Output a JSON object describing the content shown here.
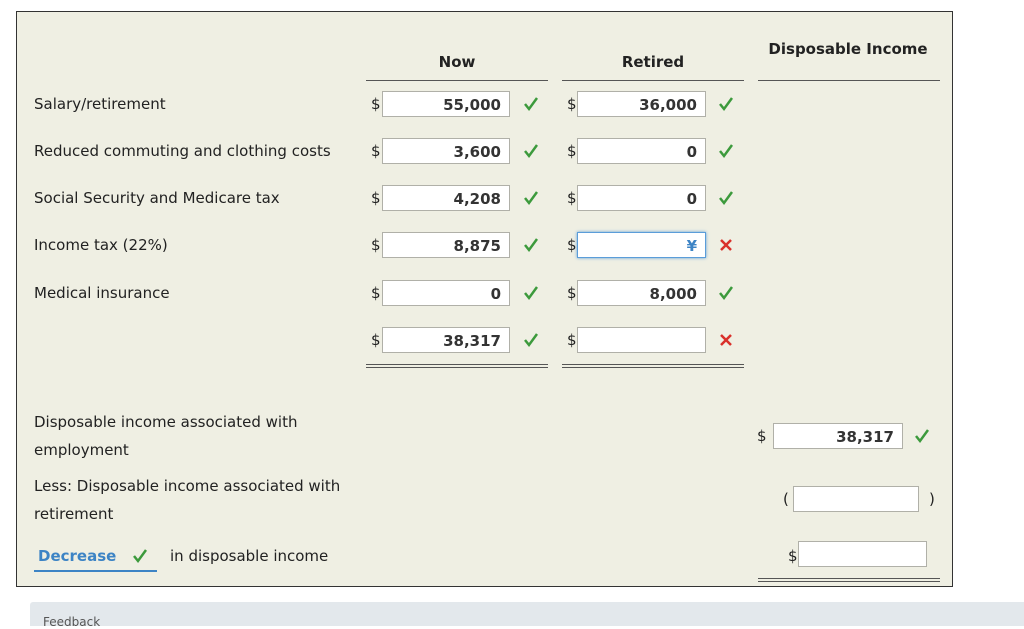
{
  "header": {
    "now": "Now",
    "retired": "Retired",
    "disposable_income": "Disposable Income"
  },
  "currency": "$",
  "rows": [
    {
      "label": "Salary/retirement",
      "now": "55,000",
      "retired": "36,000"
    },
    {
      "label": "Reduced commuting and clothing costs",
      "now": "3,600",
      "retired": "0"
    },
    {
      "label": "Social Security and Medicare tax",
      "now": "4,208",
      "retired": "0"
    },
    {
      "label": "Income tax (22%)",
      "now": "8,875",
      "retired": "¥"
    },
    {
      "label": "Medical insurance",
      "now": "0",
      "retired": "8,000"
    },
    {
      "label": null,
      "now": "38,317",
      "retired": null
    }
  ],
  "summary": [
    {
      "label": "Disposable income associated with employment",
      "value": "38,317"
    },
    {
      "label": "Less: Disposable income associated with retirement",
      "value": null,
      "open_paren": "(",
      "close_paren": ")"
    }
  ],
  "change": {
    "selection": "Decrease",
    "text": "in disposable income",
    "value": null
  },
  "feedback": "Feedback"
}
